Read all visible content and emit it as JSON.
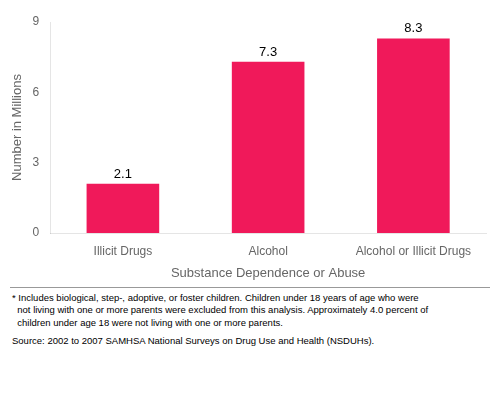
{
  "chart_data": {
    "type": "bar",
    "categories": [
      "Illicit Drugs",
      "Alcohol",
      "Alcohol or Illicit Drugs"
    ],
    "values": [
      2.1,
      7.3,
      8.3
    ],
    "color": "#F0195A",
    "xlabel": "Substance Dependence or Abuse",
    "ylabel": "Number in Millions",
    "ylim": [
      0,
      9
    ],
    "yticks": [
      0,
      3,
      6,
      9
    ],
    "grid": false,
    "data_labels": true,
    "annotations": [
      "* Includes biological, step-, adoptive, or foster children. Children under 18 years of age who were",
      "  not living with one or more parents were excluded from this analysis. Approximately 4.0 percent of",
      "  children under age 18 were not living with one or more parents.",
      "Source: 2002 to 2007 SAMHSA National Surveys on Drug Use and Health (NSDUHs)."
    ]
  }
}
